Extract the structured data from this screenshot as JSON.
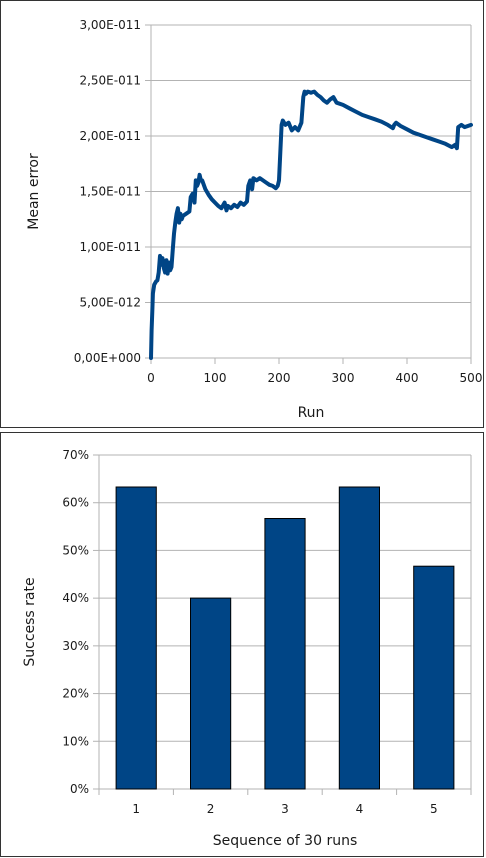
{
  "chart_data": [
    {
      "type": "line",
      "title": "",
      "xlabel": "Run",
      "ylabel": "Mean error",
      "xlim": [
        0,
        500
      ],
      "ylim": [
        0,
        3e-11
      ],
      "x_ticks": [
        0,
        100,
        200,
        300,
        400,
        500
      ],
      "x_tick_labels": [
        "0",
        "100",
        "200",
        "300",
        "400",
        "500"
      ],
      "y_ticks": [
        0,
        5e-12,
        1e-11,
        1.5e-11,
        2e-11,
        2.5e-11,
        3e-11
      ],
      "y_tick_labels": [
        "0,00E+000",
        "5,00E-012",
        "1,00E-011",
        "1,50E-011",
        "2,00E-011",
        "2,50E-011",
        "3,00E-011"
      ],
      "grid": "horizontal",
      "color": "#004586",
      "series": [
        {
          "x": [
            0,
            1,
            2,
            3,
            5,
            8,
            10,
            12,
            14,
            16,
            18,
            20,
            22,
            24,
            26,
            28,
            30,
            32,
            34,
            36,
            38,
            40,
            42,
            44,
            46,
            48,
            50,
            55,
            60,
            62,
            65,
            68,
            70,
            72,
            74,
            76,
            78,
            80,
            85,
            90,
            95,
            100,
            105,
            110,
            115,
            118,
            120,
            125,
            130,
            135,
            140,
            145,
            150,
            152,
            155,
            158,
            160,
            165,
            170,
            175,
            180,
            185,
            190,
            195,
            198,
            200,
            202,
            204,
            206,
            210,
            215,
            220,
            225,
            230,
            235,
            238,
            240,
            242,
            245,
            250,
            255,
            260,
            265,
            270,
            275,
            280,
            285,
            290,
            300,
            310,
            320,
            330,
            340,
            350,
            360,
            370,
            378,
            380,
            383,
            390,
            400,
            410,
            420,
            430,
            440,
            450,
            460,
            470,
            475,
            478,
            480,
            485,
            490,
            500
          ],
          "y": [
            0,
            2.5e-12,
            4.2e-12,
            5.8e-12,
            6.6e-12,
            6.9e-12,
            7e-12,
            7.7e-12,
            9.2e-12,
            8.4e-12,
            9e-12,
            8.1e-12,
            7.7e-12,
            8.8e-12,
            7.6e-12,
            8.6e-12,
            7.9e-12,
            8.2e-12,
            9.8e-12,
            1.12e-11,
            1.22e-11,
            1.3e-11,
            1.35e-11,
            1.22e-11,
            1.3e-11,
            1.25e-11,
            1.28e-11,
            1.3e-11,
            1.32e-11,
            1.45e-11,
            1.48e-11,
            1.4e-11,
            1.6e-11,
            1.55e-11,
            1.58e-11,
            1.65e-11,
            1.6e-11,
            1.6e-11,
            1.52e-11,
            1.47e-11,
            1.43e-11,
            1.4e-11,
            1.37e-11,
            1.35e-11,
            1.4e-11,
            1.33e-11,
            1.37e-11,
            1.35e-11,
            1.38e-11,
            1.36e-11,
            1.4e-11,
            1.38e-11,
            1.41e-11,
            1.55e-11,
            1.6e-11,
            1.52e-11,
            1.62e-11,
            1.6e-11,
            1.62e-11,
            1.6e-11,
            1.58e-11,
            1.56e-11,
            1.55e-11,
            1.53e-11,
            1.55e-11,
            1.6e-11,
            1.85e-11,
            2.1e-11,
            2.14e-11,
            2.1e-11,
            2.12e-11,
            2.05e-11,
            2.08e-11,
            2.05e-11,
            2.12e-11,
            2.35e-11,
            2.4e-11,
            2.38e-11,
            2.4e-11,
            2.39e-11,
            2.4e-11,
            2.37e-11,
            2.35e-11,
            2.32e-11,
            2.3e-11,
            2.33e-11,
            2.35e-11,
            2.3e-11,
            2.28e-11,
            2.25e-11,
            2.22e-11,
            2.19e-11,
            2.17e-11,
            2.15e-11,
            2.13e-11,
            2.1e-11,
            2.07e-11,
            2.1e-11,
            2.12e-11,
            2.09e-11,
            2.06e-11,
            2.03e-11,
            2.01e-11,
            1.99e-11,
            1.97e-11,
            1.95e-11,
            1.93e-11,
            1.9e-11,
            1.92e-11,
            1.89e-11,
            2.08e-11,
            2.1e-11,
            2.08e-11,
            2.1e-11
          ]
        }
      ]
    },
    {
      "type": "bar",
      "title": "",
      "xlabel": "Sequence of 30 runs",
      "ylabel": "Success rate",
      "categories": [
        "1",
        "2",
        "3",
        "4",
        "5"
      ],
      "values": [
        0.633,
        0.4,
        0.567,
        0.633,
        0.467
      ],
      "ylim": [
        0,
        0.7
      ],
      "y_ticks": [
        0,
        0.1,
        0.2,
        0.3,
        0.4,
        0.5,
        0.6,
        0.7
      ],
      "y_tick_labels": [
        "0%",
        "10%",
        "20%",
        "30%",
        "40%",
        "50%",
        "60%",
        "70%"
      ],
      "grid": "horizontal",
      "color": "#004586"
    }
  ]
}
